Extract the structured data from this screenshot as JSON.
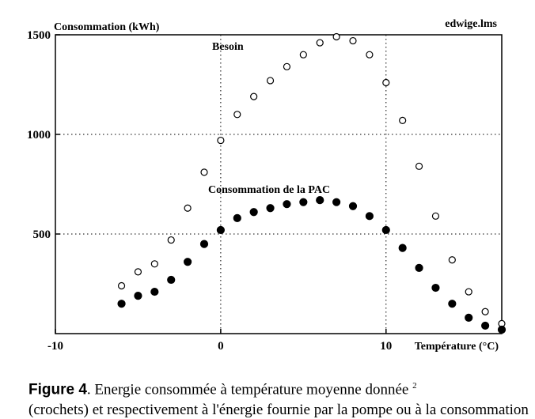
{
  "chart_data": {
    "type": "scatter",
    "title": "",
    "file_label": "edwige.lms",
    "ylabel": "Consommation (kWh)",
    "xlabel": "Température (°C)",
    "xlim": [
      -10,
      17
    ],
    "ylim": [
      0,
      1500
    ],
    "x_ticks": [
      -10,
      0,
      10
    ],
    "y_ticks": [
      500,
      1000,
      1500
    ],
    "grid": true,
    "series": [
      {
        "name": "Besoin",
        "marker": "open-circle",
        "x": [
          -6,
          -5,
          -4,
          -3,
          -2,
          -1,
          0,
          1,
          2,
          3,
          4,
          5,
          6,
          7,
          8,
          9,
          10,
          11,
          12,
          13,
          14,
          15,
          16,
          17
        ],
        "y": [
          240,
          310,
          350,
          470,
          630,
          810,
          970,
          1100,
          1190,
          1270,
          1340,
          1400,
          1460,
          1490,
          1470,
          1400,
          1260,
          1070,
          840,
          590,
          370,
          210,
          110,
          50
        ]
      },
      {
        "name": "Consommation de la PAC",
        "marker": "filled-circle",
        "x": [
          -6,
          -5,
          -4,
          -3,
          -2,
          -1,
          0,
          1,
          2,
          3,
          4,
          5,
          6,
          7,
          8,
          9,
          10,
          11,
          12,
          13,
          14,
          15,
          16,
          17
        ],
        "y": [
          150,
          190,
          210,
          270,
          360,
          450,
          520,
          580,
          610,
          630,
          650,
          660,
          670,
          660,
          640,
          590,
          520,
          430,
          330,
          230,
          150,
          80,
          40,
          20
        ]
      }
    ]
  },
  "caption": {
    "figure_label": "Figure 4",
    "text": ". Energie consommée à température moyenne donnée ",
    "footnote_mark": "2",
    "line2": "(crochets) et respectivement à l'énergie fournie par la pompe ou à la consommation"
  }
}
